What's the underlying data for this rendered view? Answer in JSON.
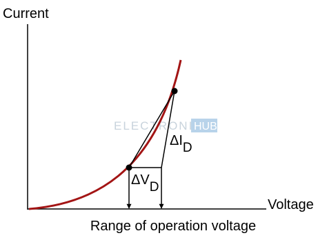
{
  "axes": {
    "y_label": "Current",
    "x_label": "Voltage"
  },
  "caption": "Range of operation voltage",
  "delta_current": {
    "symbol": "ΔI",
    "subscript": "D"
  },
  "delta_voltage": {
    "symbol": "ΔV",
    "subscript": "D"
  },
  "watermark": {
    "left": "ELECTRONICS",
    "right": "HUB"
  }
}
